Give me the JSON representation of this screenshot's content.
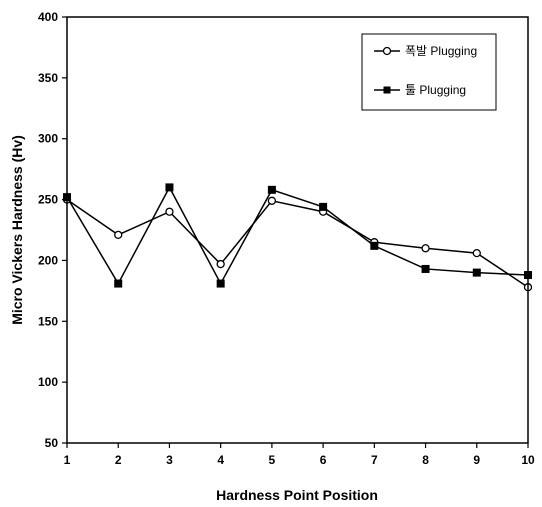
{
  "chart_data": {
    "type": "line",
    "xlabel": "Hardness Point Position",
    "ylabel": "Micro Vickers Hardness (Hv)",
    "x": [
      1,
      2,
      3,
      4,
      5,
      6,
      7,
      8,
      9,
      10
    ],
    "xlim": [
      1,
      10
    ],
    "ylim": [
      50,
      400
    ],
    "yticks": [
      50,
      100,
      150,
      200,
      250,
      300,
      350,
      400
    ],
    "grid": false,
    "legend_position": "top-right",
    "series": [
      {
        "name": "폭발 Plugging",
        "marker": "open-circle",
        "color": "#000000",
        "values": [
          250,
          221,
          240,
          197,
          249,
          240,
          215,
          210,
          206,
          178
        ]
      },
      {
        "name": "툴 Plugging",
        "marker": "filled-square",
        "color": "#000000",
        "values": [
          252,
          181,
          260,
          181,
          258,
          244,
          212,
          193,
          190,
          188
        ]
      }
    ]
  }
}
